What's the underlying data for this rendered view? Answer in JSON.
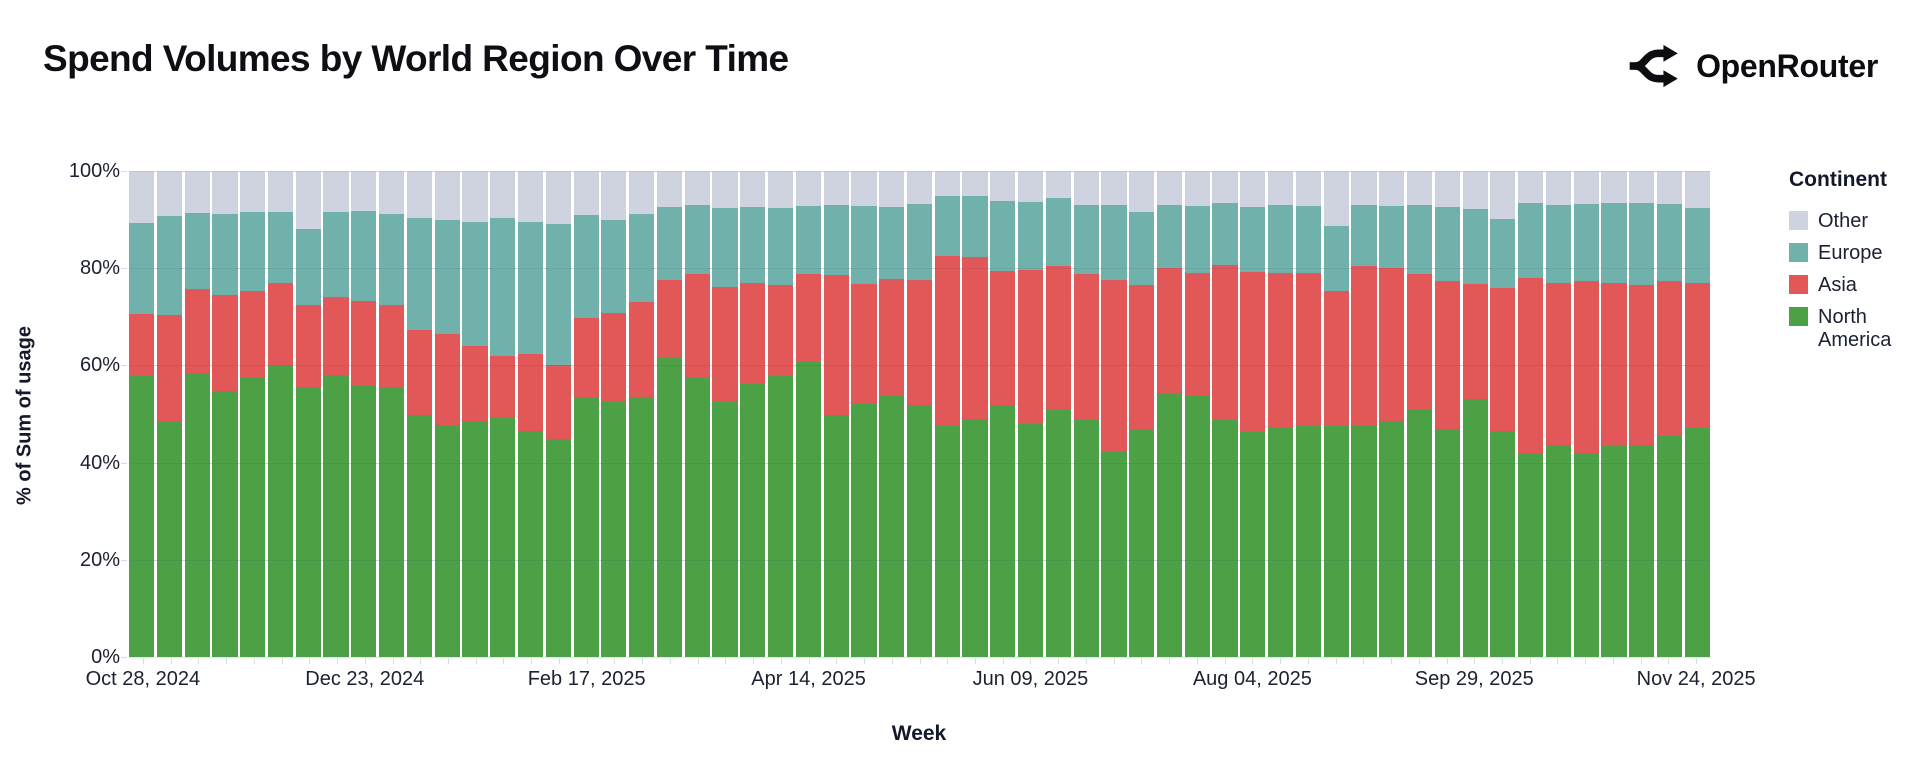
{
  "header": {
    "title": "Spend Volumes by World Region Over Time",
    "brand": {
      "name": "OpenRouter"
    }
  },
  "chart_data": {
    "type": "bar",
    "subtype": "stacked-100pct-weekly",
    "title": "Spend Volumes by World Region Over Time",
    "xlabel": "Week",
    "ylabel": "% of Sum of usage",
    "ylim": [
      0,
      100
    ],
    "y_tick_labels": [
      "0%",
      "20%",
      "40%",
      "60%",
      "80%",
      "100%"
    ],
    "y_tick_values": [
      0,
      20,
      40,
      60,
      80,
      100
    ],
    "x_tick_labels": [
      "Oct 28, 2024",
      "Dec 23, 2024",
      "Feb 17, 2025",
      "Apr 14, 2025",
      "Jun 09, 2025",
      "Aug 04, 2025",
      "Sep 29, 2025",
      "Nov 24, 2025"
    ],
    "x_tick_indices": [
      0,
      8,
      16,
      24,
      32,
      40,
      48,
      56
    ],
    "grid": "horizontal",
    "legend_position": "right",
    "categories": [
      "Oct 28, 2024",
      "Nov 04, 2024",
      "Nov 11, 2024",
      "Nov 18, 2024",
      "Nov 25, 2024",
      "Dec 02, 2024",
      "Dec 09, 2024",
      "Dec 16, 2024",
      "Dec 23, 2024",
      "Dec 30, 2024",
      "Jan 06, 2025",
      "Jan 13, 2025",
      "Jan 20, 2025",
      "Jan 27, 2025",
      "Feb 03, 2025",
      "Feb 10, 2025",
      "Feb 17, 2025",
      "Feb 24, 2025",
      "Mar 03, 2025",
      "Mar 10, 2025",
      "Mar 17, 2025",
      "Mar 24, 2025",
      "Mar 31, 2025",
      "Apr 07, 2025",
      "Apr 14, 2025",
      "Apr 21, 2025",
      "Apr 28, 2025",
      "May 05, 2025",
      "May 12, 2025",
      "May 19, 2025",
      "May 26, 2025",
      "Jun 02, 2025",
      "Jun 09, 2025",
      "Jun 16, 2025",
      "Jun 23, 2025",
      "Jun 30, 2025",
      "Jul 07, 2025",
      "Jul 14, 2025",
      "Jul 21, 2025",
      "Jul 28, 2025",
      "Aug 04, 2025",
      "Aug 11, 2025",
      "Aug 18, 2025",
      "Aug 25, 2025",
      "Sep 01, 2025",
      "Sep 08, 2025",
      "Sep 15, 2025",
      "Sep 22, 2025",
      "Sep 29, 2025",
      "Oct 06, 2025",
      "Oct 13, 2025",
      "Oct 20, 2025",
      "Oct 27, 2025",
      "Nov 03, 2025",
      "Nov 10, 2025",
      "Nov 17, 2025",
      "Nov 24, 2025"
    ],
    "stack_order_bottom_to_top": [
      "North America",
      "Asia",
      "Europe",
      "Other"
    ],
    "series": [
      {
        "name": "North America",
        "key": "north_america",
        "color": "#4ca147",
        "values": [
          57.8,
          48.4,
          58.5,
          54.7,
          57.7,
          59.8,
          55.5,
          58.0,
          55.9,
          55.6,
          49.8,
          47.8,
          48.5,
          49.1,
          46.5,
          44.9,
          53.5,
          52.4,
          53.5,
          61.6,
          57.7,
          52.4,
          56.2,
          57.8,
          60.7,
          49.8,
          52.1,
          53.6,
          51.9,
          47.6,
          48.9,
          51.9,
          48.0,
          50.9,
          48.7,
          42.2,
          46.9,
          54.4,
          53.8,
          48.7,
          46.2,
          47.1,
          47.5,
          47.6,
          47.8,
          48.5,
          51.1,
          46.9,
          53.1,
          46.5,
          42.0,
          43.6,
          42.0,
          43.4,
          43.6,
          45.5,
          47.1
        ]
      },
      {
        "name": "Asia",
        "key": "asia",
        "color": "#e25757",
        "values": [
          12.7,
          22.0,
          17.3,
          19.8,
          17.6,
          17.1,
          16.9,
          16.1,
          17.3,
          16.9,
          17.5,
          18.6,
          15.5,
          12.9,
          15.8,
          15.1,
          16.3,
          18.4,
          19.5,
          15.9,
          21.2,
          23.8,
          20.7,
          18.8,
          18.1,
          28.7,
          24.6,
          24.2,
          25.7,
          34.9,
          33.5,
          27.6,
          31.6,
          29.5,
          30.2,
          35.3,
          29.7,
          25.7,
          25.3,
          32.0,
          33.1,
          32.0,
          31.6,
          27.7,
          32.6,
          31.5,
          27.7,
          30.4,
          23.6,
          29.5,
          36.0,
          33.3,
          35.3,
          33.6,
          33.0,
          31.8,
          29.8
        ]
      },
      {
        "name": "Europe",
        "key": "europe",
        "color": "#70b2ab",
        "values": [
          18.8,
          20.3,
          15.5,
          16.7,
          16.3,
          14.7,
          15.7,
          17.5,
          18.6,
          18.6,
          23.0,
          23.5,
          25.6,
          28.3,
          27.2,
          29.1,
          21.1,
          19.2,
          18.1,
          15.1,
          14.2,
          16.2,
          15.6,
          15.8,
          14.1,
          14.5,
          16.0,
          14.7,
          15.7,
          12.3,
          12.4,
          14.3,
          14.0,
          14.1,
          14.2,
          15.6,
          15.0,
          12.9,
          13.6,
          12.8,
          13.2,
          14.0,
          13.6,
          13.4,
          12.7,
          12.7,
          14.2,
          15.3,
          15.4,
          14.2,
          15.5,
          16.1,
          16.0,
          16.5,
          16.9,
          15.9,
          15.5
        ]
      },
      {
        "name": "Other",
        "key": "other",
        "color": "#cfd3e0",
        "values": [
          10.7,
          9.3,
          8.7,
          8.8,
          8.4,
          8.4,
          11.9,
          8.4,
          8.2,
          8.9,
          9.7,
          10.1,
          10.4,
          9.7,
          10.5,
          10.9,
          9.1,
          10.0,
          8.9,
          7.4,
          6.9,
          7.6,
          7.5,
          7.6,
          7.1,
          7.0,
          7.3,
          7.5,
          6.7,
          5.2,
          5.2,
          6.2,
          6.4,
          5.5,
          6.9,
          6.9,
          8.4,
          7.0,
          7.3,
          6.5,
          7.5,
          6.9,
          7.3,
          11.3,
          6.9,
          7.3,
          7.0,
          7.4,
          7.9,
          9.8,
          6.5,
          7.0,
          6.7,
          6.5,
          6.5,
          6.8,
          7.6
        ]
      }
    ],
    "legend": {
      "title": "Continent",
      "items_top_to_bottom": [
        "Other",
        "Europe",
        "Asia",
        "North America"
      ]
    }
  }
}
